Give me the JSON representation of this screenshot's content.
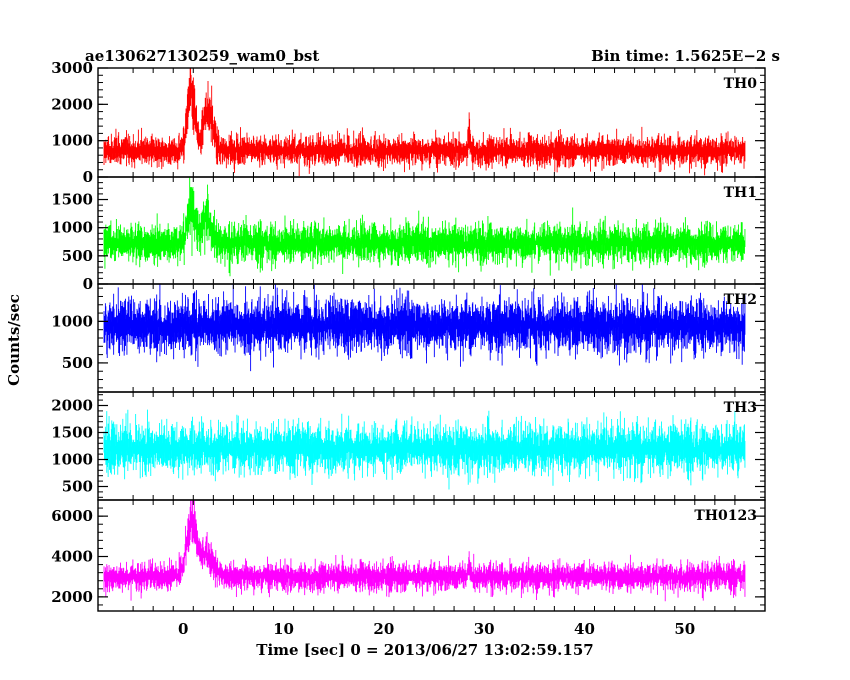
{
  "chart_data": {
    "type": "line",
    "title": "ae130627130259_wam0_bst",
    "bin_time": "Bin time: 1.5625E−2 s",
    "xlabel": "Time [sec] 0 = 2013/06/27 13:02:59.157",
    "ylabel": "Counts/sec",
    "xlim": [
      -8.5,
      58
    ],
    "x_ticks": [
      0,
      10,
      20,
      30,
      40,
      50
    ],
    "x_tick_labels": [
      "0",
      "10",
      "20",
      "30",
      "40",
      "50"
    ],
    "x_data_range": [
      -7.9,
      56.0
    ],
    "panels": [
      {
        "name": "TH0",
        "color": "#ff0000",
        "ylim": [
          0,
          3000
        ],
        "y_ticks": [
          0,
          1000,
          2000,
          3000
        ],
        "y_tick_labels": [
          "0",
          "1000",
          "2000",
          "3000"
        ],
        "baseline": 720,
        "noise": 380,
        "peaks": [
          {
            "t": 0.8,
            "height": 1800,
            "width": 0.5
          },
          {
            "t": 2.5,
            "height": 1150,
            "width": 0.7
          },
          {
            "t": 28.5,
            "height": 500,
            "width": 0.15
          }
        ]
      },
      {
        "name": "TH1",
        "color": "#00ff00",
        "ylim": [
          0,
          1900
        ],
        "y_ticks": [
          0,
          500,
          1000,
          1500
        ],
        "y_tick_labels": [
          "0",
          "500",
          "1000",
          "1500"
        ],
        "baseline": 720,
        "noise": 320,
        "peaks": [
          {
            "t": 0.8,
            "height": 650,
            "width": 0.5
          },
          {
            "t": 2.3,
            "height": 500,
            "width": 0.7
          }
        ]
      },
      {
        "name": "TH2",
        "color": "#0000ff",
        "ylim": [
          150,
          1450
        ],
        "y_ticks": [
          500,
          1000
        ],
        "y_tick_labels": [
          "500",
          "1000"
        ],
        "baseline": 950,
        "noise": 300,
        "peaks": []
      },
      {
        "name": "TH3",
        "color": "#00ffff",
        "ylim": [
          250,
          2250
        ],
        "y_ticks": [
          500,
          1000,
          1500,
          2000
        ],
        "y_tick_labels": [
          "500",
          "1000",
          "1500",
          "2000"
        ],
        "baseline": 1200,
        "noise": 420,
        "peaks": []
      },
      {
        "name": "TH0123",
        "color": "#ff00ff",
        "ylim": [
          1300,
          6800
        ],
        "y_ticks": [
          2000,
          4000,
          6000
        ],
        "y_tick_labels": [
          "2000",
          "4000",
          "6000"
        ],
        "baseline": 3000,
        "noise": 650,
        "peaks": [
          {
            "t": 0.8,
            "height": 2600,
            "width": 0.7
          },
          {
            "t": 2.3,
            "height": 1100,
            "width": 1.0
          },
          {
            "t": 28.5,
            "height": 700,
            "width": 0.15
          }
        ]
      }
    ]
  }
}
